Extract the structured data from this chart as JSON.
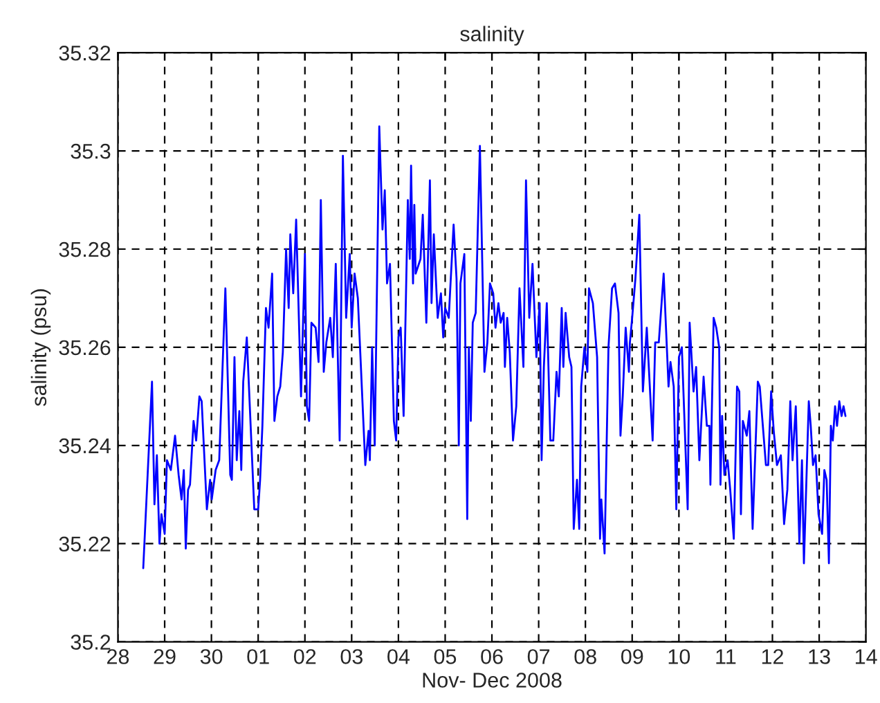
{
  "chart_data": {
    "type": "line",
    "title": "salinity",
    "xlabel": "Nov- Dec 2008",
    "ylabel": "salinity (psu)",
    "xlim": [
      "2008-11-28",
      "2008-12-14"
    ],
    "xticks": [
      {
        "value": "2008-11-28",
        "label": "28"
      },
      {
        "value": "2008-11-29",
        "label": "29"
      },
      {
        "value": "2008-11-30",
        "label": "30"
      },
      {
        "value": "2008-12-01",
        "label": "01"
      },
      {
        "value": "2008-12-02",
        "label": "02"
      },
      {
        "value": "2008-12-03",
        "label": "03"
      },
      {
        "value": "2008-12-04",
        "label": "04"
      },
      {
        "value": "2008-12-05",
        "label": "05"
      },
      {
        "value": "2008-12-06",
        "label": "06"
      },
      {
        "value": "2008-12-07",
        "label": "07"
      },
      {
        "value": "2008-12-08",
        "label": "08"
      },
      {
        "value": "2008-12-09",
        "label": "09"
      },
      {
        "value": "2008-12-10",
        "label": "10"
      },
      {
        "value": "2008-12-11",
        "label": "11"
      },
      {
        "value": "2008-12-12",
        "label": "12"
      },
      {
        "value": "2008-12-13",
        "label": "13"
      },
      {
        "value": "2008-12-14",
        "label": "14"
      }
    ],
    "ylim": [
      35.2,
      35.32
    ],
    "yticks": [
      35.2,
      35.22,
      35.24,
      35.26,
      35.28,
      35.3,
      35.32
    ],
    "grid": true,
    "line_style": "solid",
    "series": [
      {
        "color": "#0000ff",
        "x": [
          "2008-11-28T13:00",
          "2008-11-28T17:30",
          "2008-11-28T18:45",
          "2008-11-28T20:00",
          "2008-11-28T21:20",
          "2008-11-28T22:20",
          "2008-11-29T00:00",
          "2008-11-29T01:10",
          "2008-11-29T03:10",
          "2008-11-29T05:20",
          "2008-11-29T07:10",
          "2008-11-29T08:40",
          "2008-11-29T09:50",
          "2008-11-29T10:50",
          "2008-11-29T12:00",
          "2008-11-29T13:00",
          "2008-11-29T14:50",
          "2008-11-29T16:10",
          "2008-11-29T17:50",
          "2008-11-29T19:00",
          "2008-11-29T21:40",
          "2008-11-29T23:20",
          "2008-11-30T00:10",
          "2008-11-30T02:10",
          "2008-11-30T04:00",
          "2008-11-30T07:10",
          "2008-11-30T09:40",
          "2008-11-30T10:30",
          "2008-11-30T11:50",
          "2008-11-30T13:00",
          "2008-11-30T14:20",
          "2008-11-30T15:20",
          "2008-11-30T16:20",
          "2008-11-30T18:10",
          "2008-11-30T22:00",
          "2008-12-01T00:00",
          "2008-12-01T01:00",
          "2008-12-01T02:10",
          "2008-12-01T04:00",
          "2008-12-01T05:20",
          "2008-12-01T07:10",
          "2008-12-01T08:20",
          "2008-12-01T09:50",
          "2008-12-01T11:20",
          "2008-12-01T12:40",
          "2008-12-01T14:20",
          "2008-12-01T15:40",
          "2008-12-01T16:30",
          "2008-12-01T18:00",
          "2008-12-01T19:30",
          "2008-12-01T22:00",
          "2008-12-02T00:00",
          "2008-12-02T01:00",
          "2008-12-02T02:10",
          "2008-12-02T03:20",
          "2008-12-02T05:30",
          "2008-12-02T07:00",
          "2008-12-02T08:10",
          "2008-12-02T09:40",
          "2008-12-02T11:00",
          "2008-12-02T13:00",
          "2008-12-02T14:20",
          "2008-12-02T15:50",
          "2008-12-02T17:50",
          "2008-12-02T19:30",
          "2008-12-02T21:10",
          "2008-12-02T23:00",
          "2008-12-03T00:00",
          "2008-12-03T01:30",
          "2008-12-03T03:10",
          "2008-12-03T07:00",
          "2008-12-03T08:40",
          "2008-12-03T09:20",
          "2008-12-03T10:30",
          "2008-12-03T11:50",
          "2008-12-03T14:10",
          "2008-12-03T15:50",
          "2008-12-03T17:00",
          "2008-12-03T18:10",
          "2008-12-03T19:40",
          "2008-12-03T21:40",
          "2008-12-03T22:50",
          "2008-12-04T00:00",
          "2008-12-04T01:10",
          "2008-12-04T02:40",
          "2008-12-04T04:50",
          "2008-12-04T05:50",
          "2008-12-04T06:30",
          "2008-12-04T07:30",
          "2008-12-04T08:10",
          "2008-12-04T08:50",
          "2008-12-04T11:20",
          "2008-12-04T12:30",
          "2008-12-04T14:20",
          "2008-12-04T16:10",
          "2008-12-04T17:00",
          "2008-12-04T18:10",
          "2008-12-04T20:10",
          "2008-12-04T21:50",
          "2008-12-04T23:00",
          "2008-12-05T00:00",
          "2008-12-05T01:50",
          "2008-12-05T04:20",
          "2008-12-05T05:50",
          "2008-12-05T07:00",
          "2008-12-05T07:50",
          "2008-12-05T09:50",
          "2008-12-05T11:20",
          "2008-12-05T12:10",
          "2008-12-05T13:10",
          "2008-12-05T14:10",
          "2008-12-05T15:40",
          "2008-12-05T17:50",
          "2008-12-05T20:10",
          "2008-12-05T21:40",
          "2008-12-05T23:00",
          "2008-12-06T00:40",
          "2008-12-06T01:50",
          "2008-12-06T03:20",
          "2008-12-06T04:30",
          "2008-12-06T06:00",
          "2008-12-06T06:40",
          "2008-12-06T07:50",
          "2008-12-06T09:10",
          "2008-12-06T10:50",
          "2008-12-06T12:30",
          "2008-12-06T14:10",
          "2008-12-06T16:10",
          "2008-12-06T17:30",
          "2008-12-06T19:10",
          "2008-12-06T20:50",
          "2008-12-06T22:50",
          "2008-12-07T00:30",
          "2008-12-07T01:30",
          "2008-12-07T02:40",
          "2008-12-07T04:10",
          "2008-12-07T06:00",
          "2008-12-07T07:30",
          "2008-12-07T09:10",
          "2008-12-07T10:20",
          "2008-12-07T11:50",
          "2008-12-07T12:40",
          "2008-12-07T13:50",
          "2008-12-07T15:40",
          "2008-12-07T16:50",
          "2008-12-07T18:00",
          "2008-12-07T19:40",
          "2008-12-07T20:50",
          "2008-12-07T21:50",
          "2008-12-07T23:30",
          "2008-12-08T01:00",
          "2008-12-08T01:50",
          "2008-12-08T03:50",
          "2008-12-08T06:00",
          "2008-12-08T07:30",
          "2008-12-08T08:10",
          "2008-12-08T09:50",
          "2008-12-08T11:50",
          "2008-12-08T13:40",
          "2008-12-08T15:10",
          "2008-12-08T17:00",
          "2008-12-08T18:00",
          "2008-12-08T19:10",
          "2008-12-08T20:40",
          "2008-12-08T22:20",
          "2008-12-08T22:50",
          "2008-12-09T00:00",
          "2008-12-09T01:40",
          "2008-12-09T03:40",
          "2008-12-09T05:30",
          "2008-12-09T07:30",
          "2008-12-09T08:40",
          "2008-12-09T10:30",
          "2008-12-09T11:50",
          "2008-12-09T13:40",
          "2008-12-09T16:10",
          "2008-12-09T18:40",
          "2008-12-09T19:40",
          "2008-12-09T21:20",
          "2008-12-09T22:40",
          "2008-12-10T00:00",
          "2008-12-10T01:30",
          "2008-12-10T04:30",
          "2008-12-10T05:30",
          "2008-12-10T07:30",
          "2008-12-10T08:50",
          "2008-12-10T10:30",
          "2008-12-10T12:40",
          "2008-12-10T14:20",
          "2008-12-10T15:40",
          "2008-12-10T16:10",
          "2008-12-10T17:50",
          "2008-12-10T19:10",
          "2008-12-10T20:40",
          "2008-12-10T21:20",
          "2008-12-10T22:10",
          "2008-12-10T23:20",
          "2008-12-11T01:00",
          "2008-12-11T02:20",
          "2008-12-11T04:10",
          "2008-12-11T05:50",
          "2008-12-11T07:00",
          "2008-12-11T07:50",
          "2008-12-11T08:50",
          "2008-12-11T10:50",
          "2008-12-11T12:10",
          "2008-12-11T13:50",
          "2008-12-11T16:30",
          "2008-12-11T17:30",
          "2008-12-11T20:40",
          "2008-12-11T21:50",
          "2008-12-11T23:20",
          "2008-12-12T00:40",
          "2008-12-12T02:20",
          "2008-12-12T04:20",
          "2008-12-12T06:00",
          "2008-12-12T07:40",
          "2008-12-12T09:10",
          "2008-12-12T10:20",
          "2008-12-12T12:00",
          "2008-12-12T13:50",
          "2008-12-12T15:10",
          "2008-12-12T16:10",
          "2008-12-12T18:40",
          "2008-12-12T19:40",
          "2008-12-12T20:50",
          "2008-12-12T22:10",
          "2008-12-12T23:40",
          "2008-12-13T01:30",
          "2008-12-13T02:40",
          "2008-12-13T03:50",
          "2008-12-13T05:00",
          "2008-12-13T06:00",
          "2008-12-13T07:00",
          "2008-12-13T08:10",
          "2008-12-13T09:10",
          "2008-12-13T10:20",
          "2008-12-13T11:30",
          "2008-12-13T12:30",
          "2008-12-13T13:30"
        ],
        "values": [
          35.215,
          35.253,
          35.228,
          35.238,
          35.22,
          35.226,
          35.222,
          35.237,
          35.235,
          35.242,
          35.234,
          35.229,
          35.235,
          35.219,
          35.231,
          35.232,
          35.245,
          35.241,
          35.25,
          35.249,
          35.227,
          35.233,
          35.229,
          35.235,
          35.237,
          35.272,
          35.234,
          35.233,
          35.258,
          35.237,
          35.247,
          35.235,
          35.253,
          35.262,
          35.227,
          35.227,
          35.233,
          35.244,
          35.268,
          35.264,
          35.275,
          35.245,
          35.25,
          35.252,
          35.259,
          35.28,
          35.268,
          35.283,
          35.271,
          35.286,
          35.25,
          35.279,
          35.248,
          35.245,
          35.265,
          35.264,
          35.257,
          35.29,
          35.255,
          35.261,
          35.266,
          35.258,
          35.277,
          35.241,
          35.299,
          35.266,
          35.279,
          35.264,
          35.275,
          35.27,
          35.236,
          35.243,
          35.237,
          35.26,
          35.24,
          35.305,
          35.284,
          35.292,
          35.273,
          35.277,
          35.245,
          35.241,
          35.262,
          35.264,
          35.246,
          35.29,
          35.278,
          35.297,
          35.273,
          35.289,
          35.275,
          35.278,
          35.287,
          35.265,
          35.294,
          35.269,
          35.283,
          35.266,
          35.271,
          35.262,
          35.268,
          35.266,
          35.285,
          35.274,
          35.24,
          35.273,
          35.279,
          35.225,
          35.26,
          35.245,
          35.265,
          35.267,
          35.301,
          35.255,
          35.261,
          35.273,
          35.271,
          35.264,
          35.269,
          35.265,
          35.267,
          35.256,
          35.266,
          35.259,
          35.241,
          35.248,
          35.272,
          35.256,
          35.294,
          35.266,
          35.277,
          35.258,
          35.269,
          35.237,
          35.256,
          35.269,
          35.241,
          35.241,
          35.255,
          35.25,
          35.268,
          35.256,
          35.267,
          35.258,
          35.256,
          35.223,
          35.233,
          35.223,
          35.252,
          35.26,
          35.255,
          35.272,
          35.269,
          35.258,
          35.221,
          35.229,
          35.218,
          35.26,
          35.272,
          35.273,
          35.267,
          35.242,
          35.25,
          35.264,
          35.255,
          35.261,
          35.266,
          35.274,
          35.287,
          35.251,
          35.264,
          35.255,
          35.241,
          35.261,
          35.261,
          35.275,
          35.252,
          35.257,
          35.252,
          35.227,
          35.258,
          35.26,
          35.227,
          35.265,
          35.251,
          35.256,
          35.237,
          35.254,
          35.244,
          35.244,
          35.232,
          35.266,
          35.264,
          35.26,
          35.232,
          35.246,
          35.234,
          35.237,
          35.231,
          35.221,
          35.252,
          35.251,
          35.226,
          35.245,
          35.242,
          35.247,
          35.223,
          35.253,
          35.252,
          35.236,
          35.236,
          35.251,
          35.243,
          35.236,
          35.238,
          35.224,
          35.231,
          35.249,
          35.237,
          35.248,
          35.22,
          35.237,
          35.216,
          35.249,
          35.244,
          35.236,
          35.238,
          35.226,
          35.222,
          35.235,
          35.233,
          35.216,
          35.244,
          35.241,
          35.248,
          35.244,
          35.249,
          35.246,
          35.248,
          35.246
        ]
      }
    ]
  }
}
